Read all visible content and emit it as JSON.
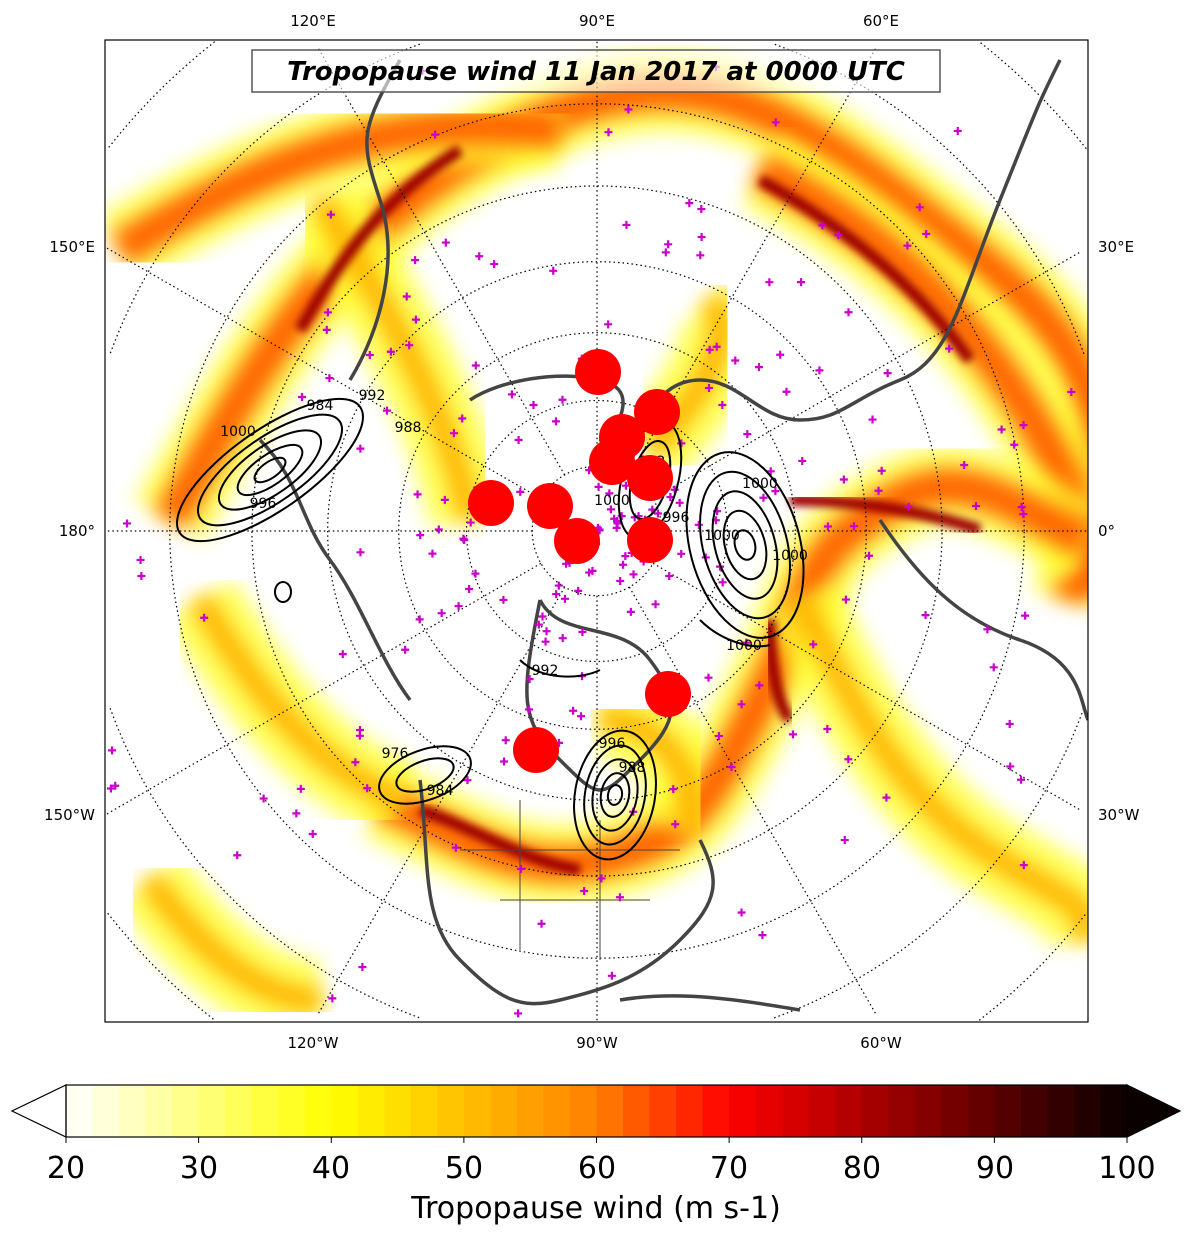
{
  "title": "Tropopause wind 11 Jan 2017 at 0000 UTC",
  "projection": "north polar stereographic",
  "longitude_labels": {
    "top": [
      "120°E",
      "90°E",
      "60°E"
    ],
    "left": [
      "150°E",
      "180°",
      "150°W"
    ],
    "right": [
      "30°E",
      "0°",
      "30°W"
    ],
    "bottom": [
      "120°W",
      "90°W",
      "60°W"
    ]
  },
  "colorbar": {
    "label": "Tropopause wind (m s-1)",
    "min": 20,
    "max": 100,
    "step": 2,
    "ticks": [
      "20",
      "30",
      "40",
      "50",
      "60",
      "70",
      "80",
      "90",
      "100"
    ],
    "extend": "both",
    "colormap": "hot_r"
  },
  "contour_labels": [
    "1000",
    "984",
    "992",
    "988",
    "996",
    "1000",
    "992",
    "976",
    "984",
    "988",
    "996",
    "1000",
    "1000",
    "1000",
    "996",
    "1000",
    "992"
  ],
  "colors": {
    "marker": "#cc00cc",
    "circle": "#ff0000",
    "coastline": "#444444"
  }
}
